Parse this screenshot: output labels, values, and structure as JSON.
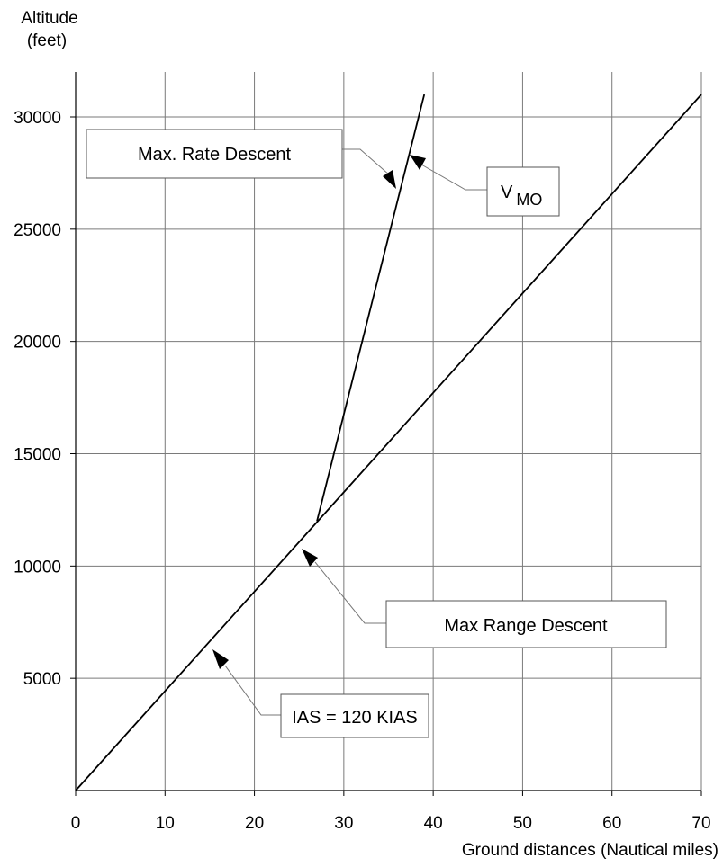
{
  "chart_data": {
    "type": "line",
    "ylabel_line1": "Altitude",
    "ylabel_line2": "(feet)",
    "xlabel": "Ground distances (Nautical miles)",
    "xlim": [
      0,
      70
    ],
    "ylim": [
      0,
      30000
    ],
    "x_ticks": [
      0,
      10,
      20,
      30,
      40,
      50,
      60,
      70
    ],
    "y_ticks": [
      5000,
      10000,
      15000,
      20000,
      25000,
      30000
    ],
    "grid": true,
    "series": [
      {
        "name": "Max Range Descent",
        "x": [
          0,
          70
        ],
        "y": [
          0,
          31000
        ]
      },
      {
        "name": "Max. Rate Descent",
        "x": [
          27,
          39
        ],
        "y": [
          12000,
          31000
        ]
      }
    ],
    "annotations": {
      "max_rate": "Max. Rate Descent",
      "vmo_main": "V",
      "vmo_sub": "MO",
      "max_range": "Max Range Descent",
      "ias": "IAS = 120 KIAS"
    }
  }
}
